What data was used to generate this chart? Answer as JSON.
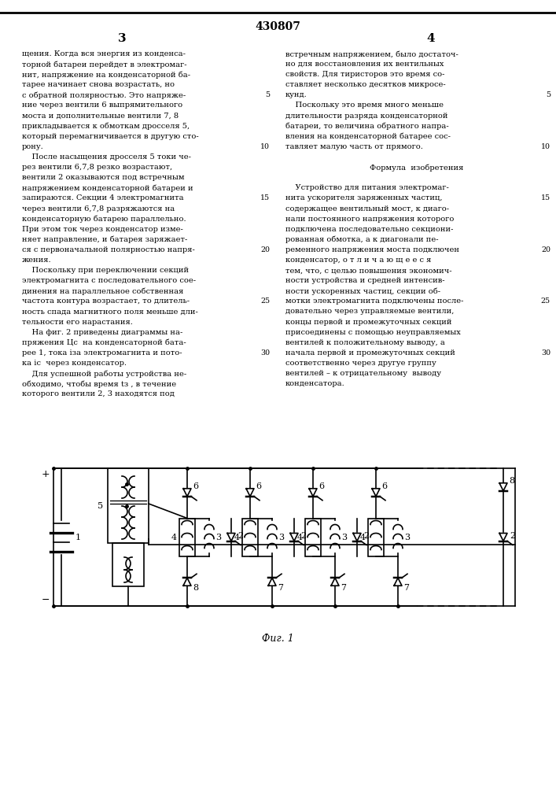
{
  "patent_number": "430807",
  "page_left": "3",
  "page_right": "4",
  "left_text_lines": [
    "щения. Когда вся энергия из конденса-",
    "торной батареи перейдет в электромаг-",
    "нит, напряжение на конденсаторной ба-",
    "тарее начинает снова возрастать, но",
    "с обратной полярностью. Это напряже-",
    "ние через вентили 6 выпрямительного",
    "моста и дополнительные вентили 7, 8",
    "прикладывается к обмоткам дросселя 5,",
    "который перемагничивается в другую сто-",
    "рону.",
    "    После насыщения дросселя 5 токи че-",
    "рез вентили 6,7,8 резко возрастают,",
    "вентили 2 оказываются под встречным",
    "напряжением конденсаторной батареи и",
    "запираются. Секции 4 электромагнита",
    "через вентили 6,7,8 разряжаются на",
    "конденсаторную батарею параллельно.",
    "При этом ток через конденсатор изме-",
    "няет направление, и батарея заряжает-",
    "ся с первоначальной полярностью напря-",
    "жения.",
    "    Поскольку при переключении секций",
    "электромагнита с последовательного сое-",
    "динения на параллельное собственная",
    "частота контура возрастает, то длитель-",
    "ность спада магнитного поля меньше дли-",
    "тельности его нарастания.",
    "    На фиг. 2 приведены диаграммы на-",
    "пряжения Цс  на конденсаторной бата-",
    "рее 1, тока iза электромагнита и пото-",
    "ка iс  через конденсатор.",
    "    Для успешной работы устройства не-",
    "обходимо, чтобы время tз , в течение",
    "которого вентили 2, 3 находятся под"
  ],
  "right_text_lines": [
    "встречным напряжением, было достаточ-",
    "но для восстановления их вентильных",
    "свойств. Для тиристоров это время со-",
    "ставляет несколько десятков микросе-",
    "кунд.",
    "    Поскольку это время много меньше",
    "длительности разряда конденсаторной",
    "батареи, то величина обратного напра-",
    "вления на конденсаторной батарее сос-",
    "тавляет малую часть от прямого.",
    "",
    "Формула  изобретения",
    "",
    "    Устройство для питания электромаг-",
    "нита ускорителя заряженных частиц,",
    "содержащее вентильный мост, к диаго-",
    "нали постоянного напряжения которого",
    "подключена последовательно секциони-",
    "рованная обмотка, а к диагонали пе-",
    "ременного напряжения моста подключен",
    "конденсатор, о т л и ч а ю щ е е с я",
    "тем, что, с целью повышения экономич-",
    "ности устройства и средней интенсив-",
    "ности ускоренных частиц, секции об-",
    "мотки электромагнита подключены после-",
    "довательно через управляемые вентили,",
    "концы первой и промежуточных секций",
    "присоединены с помощью неуправляемых",
    "вентилей к положительному выводу, а",
    "начала первой и промежуточных секций",
    "соответственно через другуе группу",
    "вентилей – к отрицательному  выводу",
    "конденсатора."
  ],
  "fig_caption": "Фиг. 1"
}
